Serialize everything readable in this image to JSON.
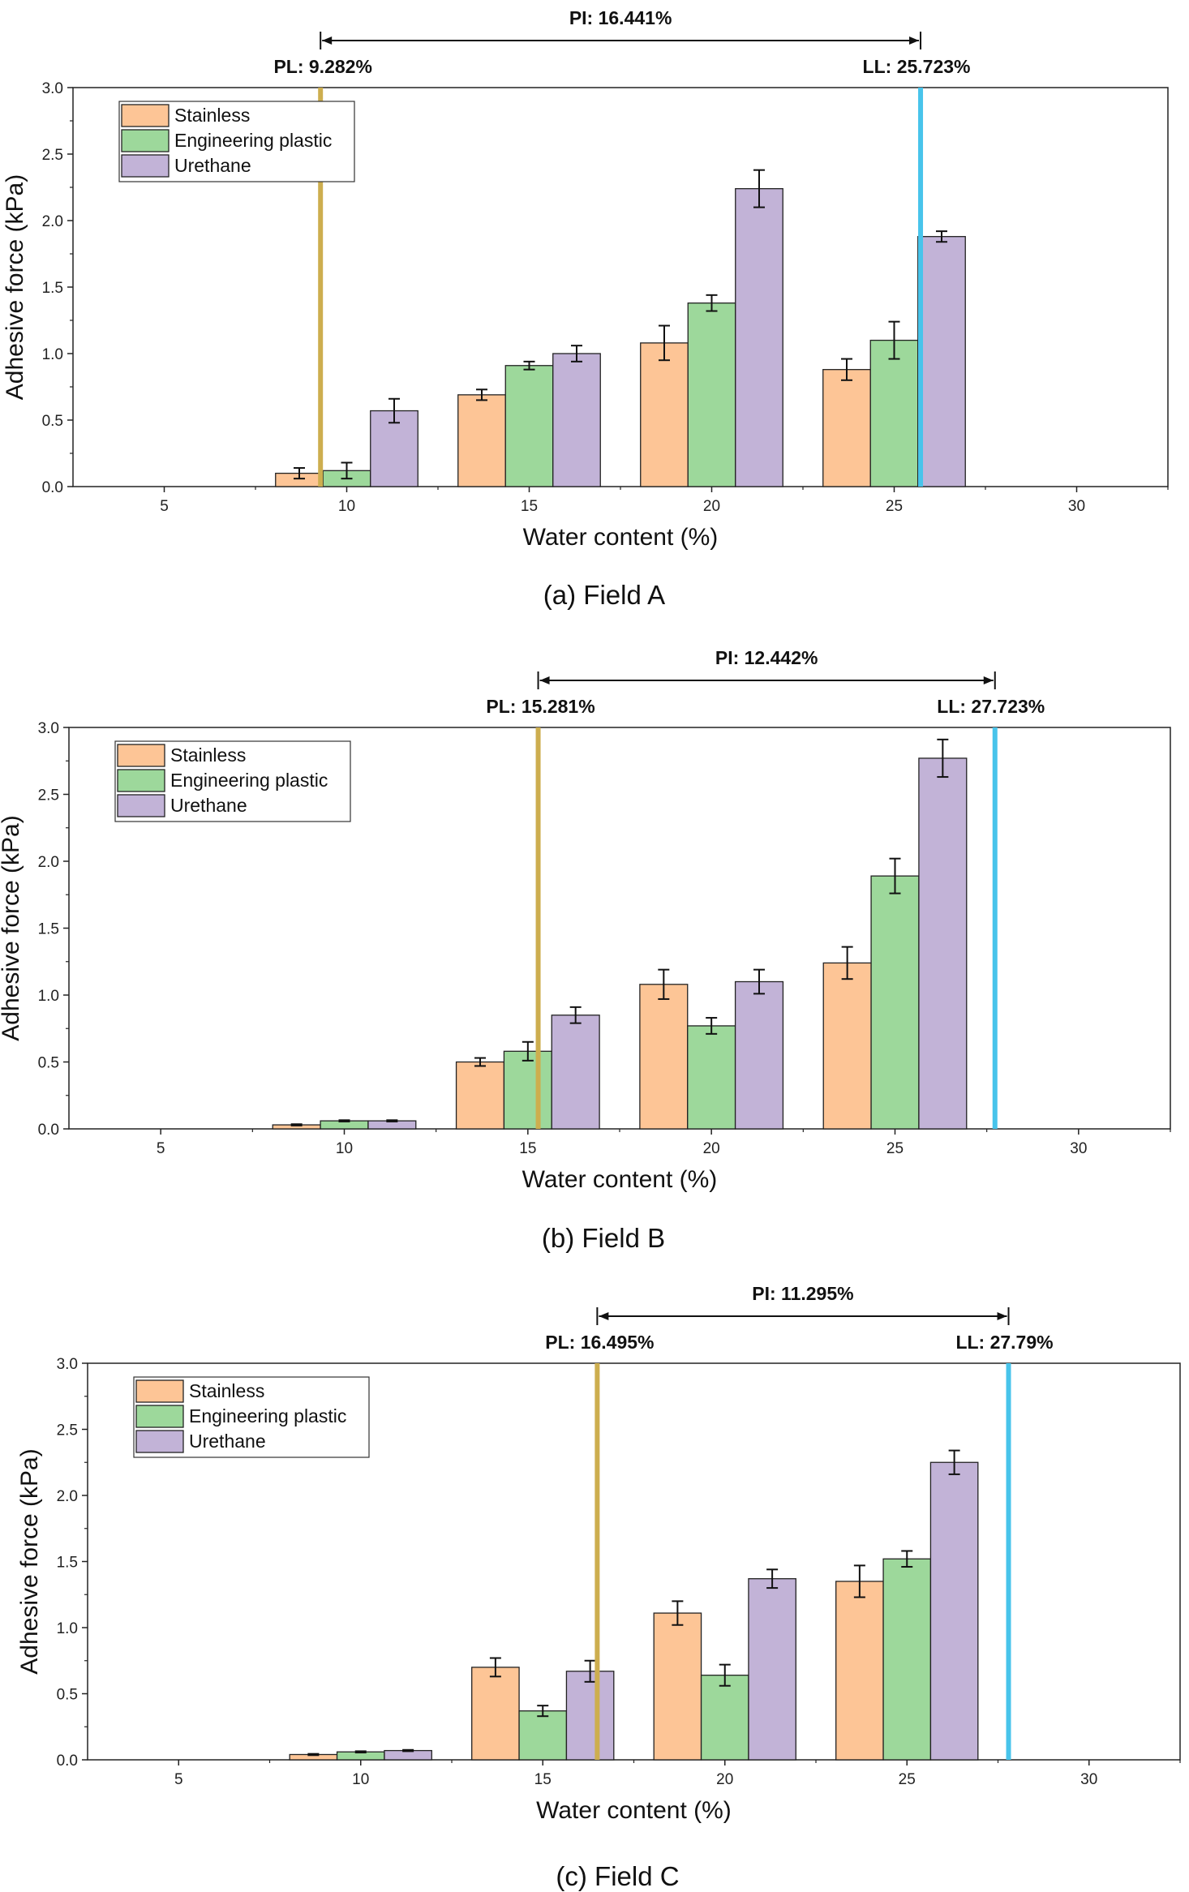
{
  "colors": {
    "Stainless": "#FDC596",
    "Engineering plastic": "#9DD89B",
    "Urethane": "#C2B3D7",
    "pl_line": "#CDAE4F",
    "ll_line": "#48C4EB"
  },
  "chart_data": [
    {
      "type": "bar",
      "caption": "(a) Field A",
      "xlabel": "Water content (%)",
      "ylabel": "Adhesive force (kPa)",
      "xlim": [
        2.5,
        32.5
      ],
      "ylim": [
        0,
        3.0
      ],
      "xticks": [
        5,
        10,
        15,
        20,
        25,
        30
      ],
      "yticks": [
        0.0,
        0.5,
        1.0,
        1.5,
        2.0,
        2.5,
        3.0
      ],
      "x": [
        10,
        15,
        20,
        25
      ],
      "bar_width": 1.3,
      "series": [
        {
          "name": "Stainless",
          "values": [
            0.1,
            0.69,
            1.08,
            0.88
          ],
          "errors": [
            0.04,
            0.04,
            0.13,
            0.08
          ]
        },
        {
          "name": "Engineering plastic",
          "values": [
            0.12,
            0.91,
            1.38,
            1.1
          ],
          "errors": [
            0.06,
            0.03,
            0.06,
            0.14
          ]
        },
        {
          "name": "Urethane",
          "values": [
            0.57,
            1.0,
            2.24,
            1.88
          ],
          "errors": [
            0.09,
            0.06,
            0.14,
            0.04
          ]
        }
      ],
      "pl": {
        "value": 9.282,
        "label": "PL: 9.282%"
      },
      "ll": {
        "value": 25.723,
        "label": "LL: 25.723%"
      },
      "pi_label": "PI: 16.441%",
      "legend": "top-left",
      "grid": false
    },
    {
      "type": "bar",
      "caption": "(b) Field B",
      "xlabel": "Water content (%)",
      "ylabel": "Adhesive force (kPa)",
      "xlim": [
        2.5,
        32.5
      ],
      "ylim": [
        0,
        3.0
      ],
      "xticks": [
        5,
        10,
        15,
        20,
        25,
        30
      ],
      "yticks": [
        0.0,
        0.5,
        1.0,
        1.5,
        2.0,
        2.5,
        3.0
      ],
      "x": [
        10,
        15,
        20,
        25
      ],
      "bar_width": 1.3,
      "series": [
        {
          "name": "Stainless",
          "values": [
            0.03,
            0.5,
            1.08,
            1.24
          ],
          "errors": [
            0.005,
            0.03,
            0.11,
            0.12
          ]
        },
        {
          "name": "Engineering plastic",
          "values": [
            0.06,
            0.58,
            0.77,
            1.89
          ],
          "errors": [
            0.005,
            0.07,
            0.06,
            0.13
          ]
        },
        {
          "name": "Urethane",
          "values": [
            0.06,
            0.85,
            1.1,
            2.77
          ],
          "errors": [
            0.005,
            0.06,
            0.09,
            0.14
          ]
        }
      ],
      "pl": {
        "value": 15.281,
        "label": "PL: 15.281%"
      },
      "ll": {
        "value": 27.723,
        "label": "LL: 27.723%"
      },
      "pi_label": "PI: 12.442%",
      "legend": "top-left",
      "grid": false
    },
    {
      "type": "bar",
      "caption": "(c) Field C",
      "xlabel": "Water content (%)",
      "ylabel": "Adhesive force (kPa)",
      "xlim": [
        2.5,
        32.5
      ],
      "ylim": [
        0,
        3.0
      ],
      "xticks": [
        5,
        10,
        15,
        20,
        25,
        30
      ],
      "yticks": [
        0.0,
        0.5,
        1.0,
        1.5,
        2.0,
        2.5,
        3.0
      ],
      "x": [
        10,
        15,
        20,
        25
      ],
      "bar_width": 1.3,
      "series": [
        {
          "name": "Stainless",
          "values": [
            0.04,
            0.7,
            1.11,
            1.35
          ],
          "errors": [
            0.005,
            0.07,
            0.09,
            0.12
          ]
        },
        {
          "name": "Engineering plastic",
          "values": [
            0.06,
            0.37,
            0.64,
            1.52
          ],
          "errors": [
            0.005,
            0.04,
            0.08,
            0.06
          ]
        },
        {
          "name": "Urethane",
          "values": [
            0.07,
            0.67,
            1.37,
            2.25
          ],
          "errors": [
            0.005,
            0.08,
            0.07,
            0.09
          ]
        }
      ],
      "pl": {
        "value": 16.495,
        "label": "PL: 16.495%"
      },
      "ll": {
        "value": 27.79,
        "label": "LL: 27.79%"
      },
      "pi_label": "PI: 11.295%",
      "legend": "top-left",
      "grid": false
    }
  ]
}
